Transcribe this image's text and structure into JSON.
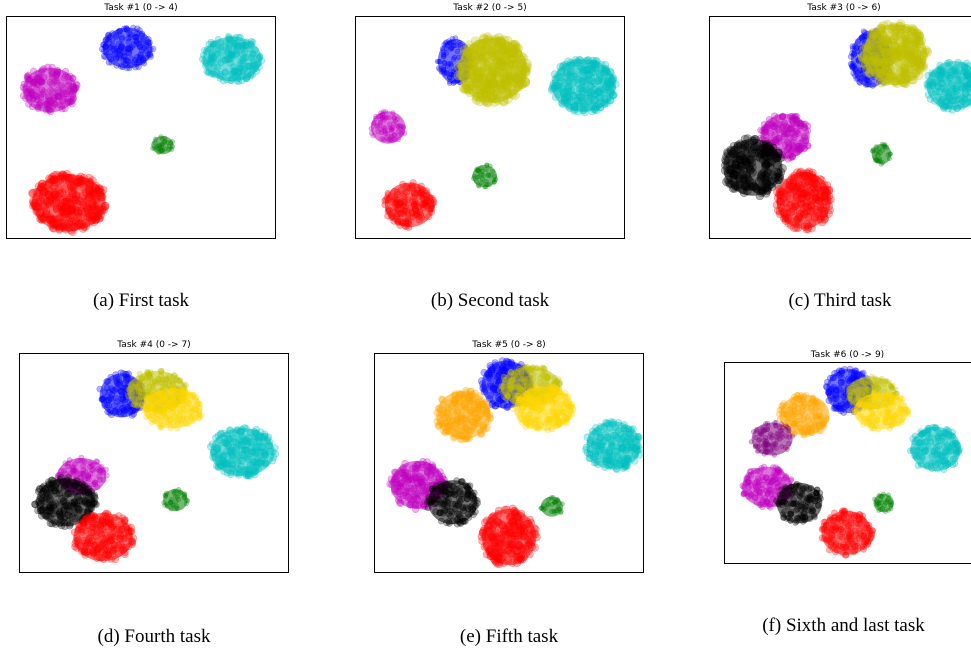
{
  "colors": {
    "blue": "#0000ff",
    "cyan": "#00bfbf",
    "magenta": "#bf00bf",
    "green": "#008000",
    "red": "#ff0000",
    "yellow": "#bfbf00",
    "gold": "#ffd700",
    "black": "#000000",
    "orange": "#ffa500",
    "purple": "#800080"
  },
  "chart_data": [
    {
      "type": "scatter",
      "title": "Task #1 (0 -> 4)",
      "caption": "(a) First task",
      "xlim": [
        0,
        100
      ],
      "ylim": [
        0,
        100
      ],
      "clusters": [
        {
          "color": "blue",
          "x": 45,
          "y": 86,
          "rx": 10,
          "ry": 10
        },
        {
          "color": "cyan",
          "x": 84,
          "y": 81,
          "rx": 12,
          "ry": 11
        },
        {
          "color": "magenta",
          "x": 16,
          "y": 67,
          "rx": 11,
          "ry": 11
        },
        {
          "color": "green",
          "x": 58,
          "y": 42,
          "rx": 4.5,
          "ry": 4.5
        },
        {
          "color": "red",
          "x": 23,
          "y": 16,
          "rx": 15,
          "ry": 14
        }
      ]
    },
    {
      "type": "scatter",
      "title": "Task #2 (0 -> 5)",
      "caption": "(b) Second task",
      "xlim": [
        0,
        100
      ],
      "ylim": [
        0,
        100
      ],
      "clusters": [
        {
          "color": "blue",
          "x": 37,
          "y": 80,
          "rx": 7,
          "ry": 11
        },
        {
          "color": "yellow",
          "x": 51,
          "y": 76,
          "rx": 14,
          "ry": 16
        },
        {
          "color": "cyan",
          "x": 85,
          "y": 69,
          "rx": 13,
          "ry": 13
        },
        {
          "color": "magenta",
          "x": 12,
          "y": 50,
          "rx": 7,
          "ry": 8
        },
        {
          "color": "green",
          "x": 48,
          "y": 28,
          "rx": 5,
          "ry": 5.5
        },
        {
          "color": "red",
          "x": 20,
          "y": 15,
          "rx": 10,
          "ry": 11
        }
      ]
    },
    {
      "type": "scatter",
      "title": "Task #3 (0 -> 6)",
      "caption": "(c) Third task",
      "xlim": [
        0,
        100
      ],
      "ylim": [
        0,
        100
      ],
      "clusters": [
        {
          "color": "blue",
          "x": 60,
          "y": 81,
          "rx": 8,
          "ry": 14
        },
        {
          "color": "yellow",
          "x": 69,
          "y": 83,
          "rx": 13,
          "ry": 15
        },
        {
          "color": "cyan",
          "x": 91,
          "y": 69,
          "rx": 11,
          "ry": 12
        },
        {
          "color": "magenta",
          "x": 28,
          "y": 46,
          "rx": 10,
          "ry": 11
        },
        {
          "color": "black",
          "x": 16,
          "y": 32,
          "rx": 12,
          "ry": 14
        },
        {
          "color": "green",
          "x": 64,
          "y": 38,
          "rx": 4,
          "ry": 5
        },
        {
          "color": "red",
          "x": 35,
          "y": 17,
          "rx": 11,
          "ry": 14
        }
      ]
    },
    {
      "type": "scatter",
      "title": "Task #4 (0 -> 7)",
      "caption": "(d) Fourth task",
      "xlim": [
        0,
        100
      ],
      "ylim": [
        0,
        100
      ],
      "clusters": [
        {
          "color": "blue",
          "x": 38,
          "y": 81,
          "rx": 9,
          "ry": 11
        },
        {
          "color": "yellow",
          "x": 51,
          "y": 83,
          "rx": 12,
          "ry": 10
        },
        {
          "color": "gold",
          "x": 57,
          "y": 75,
          "rx": 12,
          "ry": 10
        },
        {
          "color": "cyan",
          "x": 83,
          "y": 55,
          "rx": 13,
          "ry": 12
        },
        {
          "color": "magenta",
          "x": 23,
          "y": 44,
          "rx": 10,
          "ry": 9
        },
        {
          "color": "black",
          "x": 17,
          "y": 32,
          "rx": 12,
          "ry": 12
        },
        {
          "color": "green",
          "x": 58,
          "y": 33,
          "rx": 5,
          "ry": 5.5
        },
        {
          "color": "red",
          "x": 31,
          "y": 16,
          "rx": 12,
          "ry": 12
        }
      ]
    },
    {
      "type": "scatter",
      "title": "Task #5 (0 -> 8)",
      "caption": "(e) Fifth task",
      "xlim": [
        0,
        100
      ],
      "ylim": [
        0,
        100
      ],
      "clusters": [
        {
          "color": "blue",
          "x": 49,
          "y": 86,
          "rx": 10,
          "ry": 12
        },
        {
          "color": "yellow",
          "x": 58,
          "y": 85,
          "rx": 12,
          "ry": 10
        },
        {
          "color": "gold",
          "x": 63,
          "y": 75,
          "rx": 12,
          "ry": 11
        },
        {
          "color": "orange",
          "x": 33,
          "y": 72,
          "rx": 11,
          "ry": 12
        },
        {
          "color": "cyan",
          "x": 89,
          "y": 58,
          "rx": 11,
          "ry": 12
        },
        {
          "color": "magenta",
          "x": 16,
          "y": 40,
          "rx": 11,
          "ry": 12
        },
        {
          "color": "black",
          "x": 29,
          "y": 32,
          "rx": 10,
          "ry": 11
        },
        {
          "color": "green",
          "x": 66,
          "y": 30,
          "rx": 4.5,
          "ry": 5
        },
        {
          "color": "red",
          "x": 50,
          "y": 16,
          "rx": 11,
          "ry": 14
        }
      ]
    },
    {
      "type": "scatter",
      "title": "Task #6 (0 -> 9)",
      "caption": "(f) Sixth and last task",
      "xlim": [
        0,
        100
      ],
      "ylim": [
        0,
        100
      ],
      "clusters": [
        {
          "color": "blue",
          "x": 50,
          "y": 86,
          "rx": 10,
          "ry": 12
        },
        {
          "color": "yellow",
          "x": 59,
          "y": 85,
          "rx": 11,
          "ry": 9
        },
        {
          "color": "gold",
          "x": 63,
          "y": 76,
          "rx": 12,
          "ry": 10
        },
        {
          "color": "orange",
          "x": 32,
          "y": 74,
          "rx": 11,
          "ry": 11
        },
        {
          "color": "purple",
          "x": 19,
          "y": 62,
          "rx": 9,
          "ry": 9
        },
        {
          "color": "cyan",
          "x": 85,
          "y": 57,
          "rx": 11,
          "ry": 12
        },
        {
          "color": "magenta",
          "x": 17,
          "y": 38,
          "rx": 11,
          "ry": 11
        },
        {
          "color": "black",
          "x": 30,
          "y": 30,
          "rx": 10,
          "ry": 11
        },
        {
          "color": "green",
          "x": 64,
          "y": 30,
          "rx": 4.5,
          "ry": 5
        },
        {
          "color": "red",
          "x": 49,
          "y": 15,
          "rx": 11,
          "ry": 12
        }
      ]
    }
  ]
}
